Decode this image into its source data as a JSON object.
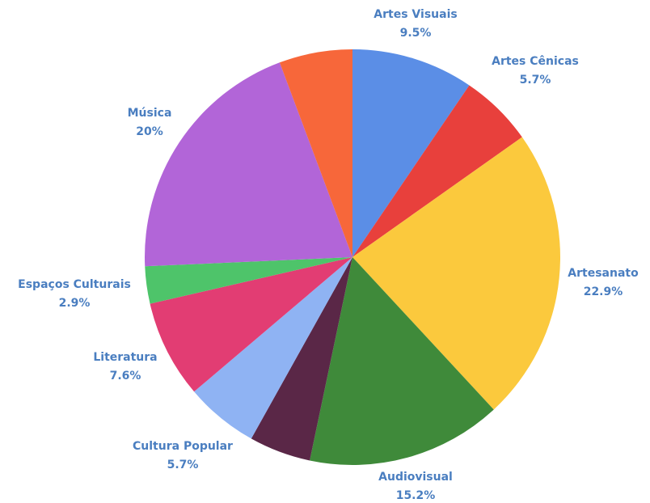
{
  "chart_data": {
    "type": "pie",
    "title": "",
    "slices": [
      {
        "name": "Artes Visuais",
        "value": 9.5,
        "display": "9.5%",
        "color": "#5b8ee6"
      },
      {
        "name": "Artes Cênicas",
        "value": 5.7,
        "display": "5.7%",
        "color": "#e8403c"
      },
      {
        "name": "Artesanato",
        "value": 22.9,
        "display": "22.9%",
        "color": "#fbc93d"
      },
      {
        "name": "Audiovisual",
        "value": 15.2,
        "display": "15.2%",
        "color": "#3f8a3a"
      },
      {
        "name": "",
        "value": 4.8,
        "display": "",
        "color": "#5a2747"
      },
      {
        "name": "Cultura Popular",
        "value": 5.7,
        "display": "5.7%",
        "color": "#8fb3f3"
      },
      {
        "name": "Literatura",
        "value": 7.6,
        "display": "7.6%",
        "color": "#e23d73"
      },
      {
        "name": "Espaços Culturais",
        "value": 2.9,
        "display": "2.9%",
        "color": "#4ec46a"
      },
      {
        "name": "Música",
        "value": 20,
        "display": "20%",
        "color": "#b265d8"
      },
      {
        "name": "",
        "value": 5.7,
        "display": "",
        "color": "#f7673a"
      }
    ],
    "label_color": "#4a7ec0",
    "legend": "none"
  }
}
